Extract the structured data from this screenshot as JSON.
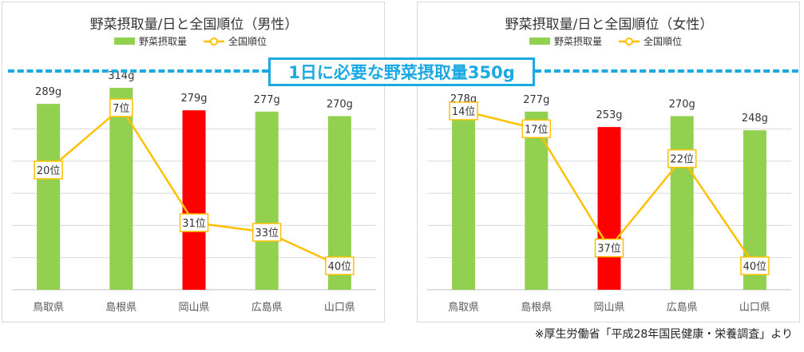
{
  "benchmark": {
    "label": "1日に必要な野菜摂取量350g"
  },
  "source_note": "※厚生労働省「平成28年国民健康・栄養調査」より",
  "colors": {
    "bar": "#92d050",
    "highlight_bar": "#ff0000",
    "rank_line": "#ffc000",
    "benchmark_line": "#1aa9e0",
    "grid": "#d9d9d9"
  },
  "chart_data": [
    {
      "type": "bar",
      "title": "野菜摂取量/日と全国順位（男性）",
      "legend": [
        "野菜摂取量",
        "全国順位"
      ],
      "legend_position": "top",
      "categories": [
        "鳥取県",
        "島根県",
        "岡山県",
        "広島県",
        "山口県"
      ],
      "series": [
        {
          "name": "野菜摂取量",
          "values": [
            289,
            314,
            279,
            277,
            270
          ],
          "labels": [
            "289g",
            "314g",
            "279g",
            "277g",
            "270g"
          ]
        },
        {
          "name": "全国順位",
          "type": "line",
          "values": [
            20,
            7,
            31,
            33,
            40
          ],
          "labels": [
            "20位",
            "7位",
            "31位",
            "33位",
            "40位"
          ]
        }
      ],
      "highlight_category": "岡山県",
      "ylim": [
        0,
        350
      ],
      "grid": true
    },
    {
      "type": "bar",
      "title": "野菜摂取量/日と全国順位（女性）",
      "legend": [
        "野菜摂取量",
        "全国順位"
      ],
      "legend_position": "top",
      "categories": [
        "鳥取県",
        "島根県",
        "岡山県",
        "広島県",
        "山口県"
      ],
      "series": [
        {
          "name": "野菜摂取量",
          "values": [
            278,
            277,
            253,
            270,
            248
          ],
          "labels": [
            "278g",
            "277g",
            "253g",
            "270g",
            "248g"
          ]
        },
        {
          "name": "全国順位",
          "type": "line",
          "values": [
            14,
            17,
            37,
            22,
            40
          ],
          "labels": [
            "14位",
            "17位",
            "37位",
            "22位",
            "40位"
          ]
        }
      ],
      "highlight_category": "岡山県",
      "ylim": [
        0,
        350
      ],
      "grid": true
    }
  ]
}
